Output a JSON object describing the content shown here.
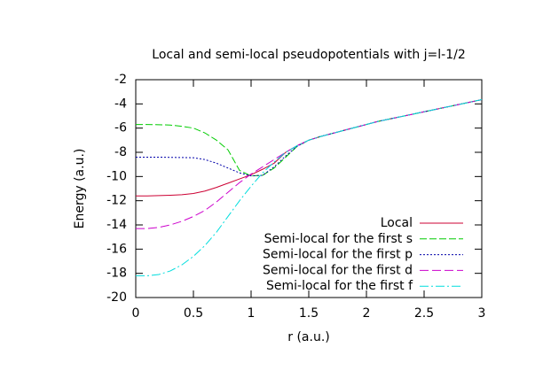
{
  "chart_data": {
    "type": "line",
    "title": "Local and semi-local pseudopotentials with j=l-1/2",
    "x_label": "r (a.u.)",
    "y_label": "Energy (a.u.)",
    "x": [
      0,
      0.1,
      0.2,
      0.3,
      0.4,
      0.5,
      0.6,
      0.7,
      0.8,
      0.9,
      1.0,
      1.1,
      1.2,
      1.3,
      1.4,
      1.5,
      1.6,
      1.7,
      1.8,
      1.9,
      2.0,
      2.1,
      2.2,
      2.3,
      2.4,
      2.5,
      2.6,
      2.7,
      2.8,
      2.9,
      3.0
    ],
    "series": [
      {
        "name": "Local",
        "color": "#cc0033",
        "values": [
          -11.6,
          -11.6,
          -11.58,
          -11.55,
          -11.5,
          -11.4,
          -11.2,
          -10.9,
          -10.55,
          -10.2,
          -9.85,
          -9.4,
          -8.9,
          -8.0,
          -7.45,
          -7.0,
          -6.7,
          -6.45,
          -6.2,
          -5.95,
          -5.7,
          -5.45,
          -5.25,
          -5.05,
          -4.85,
          -4.65,
          -4.45,
          -4.25,
          -4.05,
          -3.85,
          -3.65
        ]
      },
      {
        "name": "Semi-local for the first s",
        "color": "#00cc00",
        "values": [
          -5.7,
          -5.7,
          -5.72,
          -5.75,
          -5.85,
          -6.0,
          -6.4,
          -7.0,
          -7.8,
          -9.5,
          -9.95,
          -9.9,
          -9.3,
          -8.4,
          -7.5,
          -7.0,
          -6.7,
          -6.45,
          -6.2,
          -5.95,
          -5.7,
          -5.45,
          -5.25,
          -5.05,
          -4.85,
          -4.65,
          -4.45,
          -4.25,
          -4.05,
          -3.85,
          -3.65
        ]
      },
      {
        "name": "Semi-local for the first p",
        "color": "#0000aa",
        "values": [
          -8.4,
          -8.4,
          -8.4,
          -8.42,
          -8.43,
          -8.45,
          -8.6,
          -8.9,
          -9.3,
          -9.7,
          -9.95,
          -9.9,
          -9.2,
          -8.3,
          -7.5,
          -7.0,
          -6.7,
          -6.45,
          -6.2,
          -5.95,
          -5.7,
          -5.45,
          -5.25,
          -5.05,
          -4.85,
          -4.65,
          -4.45,
          -4.25,
          -4.05,
          -3.85,
          -3.65
        ]
      },
      {
        "name": "Semi-local for the first d",
        "color": "#cc00cc",
        "values": [
          -14.3,
          -14.3,
          -14.2,
          -14.0,
          -13.7,
          -13.3,
          -12.8,
          -12.1,
          -11.3,
          -10.5,
          -9.8,
          -9.2,
          -8.6,
          -8.0,
          -7.45,
          -7.0,
          -6.7,
          -6.45,
          -6.2,
          -5.95,
          -5.7,
          -5.45,
          -5.25,
          -5.05,
          -4.85,
          -4.65,
          -4.45,
          -4.25,
          -4.05,
          -3.85,
          -3.65
        ]
      },
      {
        "name": "Semi-local for the first f",
        "color": "#00dddd",
        "values": [
          -18.2,
          -18.2,
          -18.1,
          -17.8,
          -17.3,
          -16.6,
          -15.7,
          -14.6,
          -13.3,
          -12.0,
          -10.8,
          -9.7,
          -8.8,
          -8.0,
          -7.45,
          -7.0,
          -6.7,
          -6.45,
          -6.2,
          -5.95,
          -5.7,
          -5.45,
          -5.25,
          -5.05,
          -4.85,
          -4.65,
          -4.45,
          -4.25,
          -4.05,
          -3.85,
          -3.65
        ]
      }
    ],
    "xlim": [
      0,
      3
    ],
    "xticks": [
      0,
      0.5,
      1,
      1.5,
      2,
      2.5,
      3
    ],
    "ylim": [
      -20,
      -2
    ],
    "yticks": [
      -20,
      -18,
      -16,
      -14,
      -12,
      -10,
      -8,
      -6,
      -4,
      -2
    ],
    "legend": "bottom-right"
  }
}
